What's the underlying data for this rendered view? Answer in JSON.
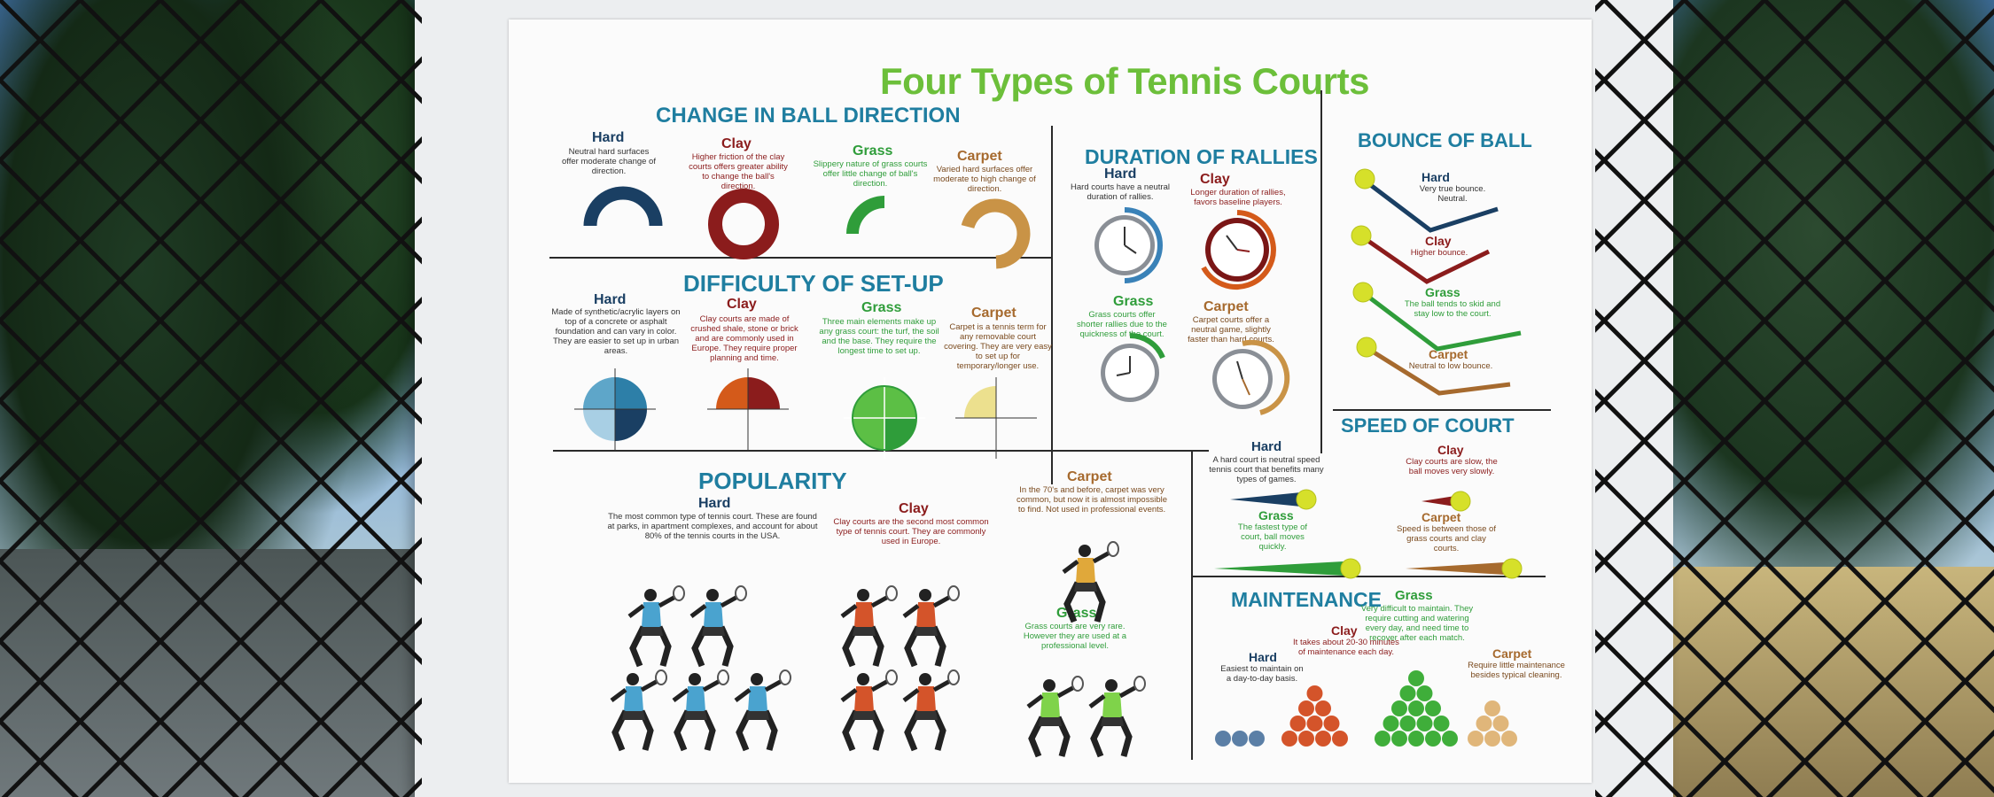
{
  "poster": {
    "title": "Four Types of Tennis Courts",
    "ball_direction": {
      "title": "CHANGE IN BALL DIRECTION",
      "hard": {
        "label": "Hard",
        "text": "Neutral hard surfaces offer moderate change of direction."
      },
      "clay": {
        "label": "Clay",
        "text": "Higher friction of the clay courts offers greater ability to change the ball's direction."
      },
      "grass": {
        "label": "Grass",
        "text": "Slippery nature of grass courts offer little change of ball's direction."
      },
      "carpet": {
        "label": "Carpet",
        "text": "Varied hard surfaces offer moderate to high change of direction."
      }
    },
    "setup": {
      "title": "DIFFICULTY OF SET-UP",
      "hard": {
        "label": "Hard",
        "text": "Made of synthetic/acrylic layers on top of a concrete or asphalt foundation and can vary in color. They are easier to set up in urban areas."
      },
      "clay": {
        "label": "Clay",
        "text": "Clay courts are made of crushed shale, stone or brick and are commonly used in Europe. They require proper planning and time."
      },
      "grass": {
        "label": "Grass",
        "text": "Three main elements make up any grass court: the turf, the soil and the base. They require the longest time to set up."
      },
      "carpet": {
        "label": "Carpet",
        "text": "Carpet is a tennis term for any removable court covering. They are very easy to set up for temporary/longer use."
      }
    },
    "popularity": {
      "title": "POPULARITY",
      "hard": {
        "label": "Hard",
        "text": "The most common type of tennis court. These are found at parks, in apartment complexes, and account for about 80% of the tennis courts in the USA."
      },
      "clay": {
        "label": "Clay",
        "text": "Clay courts are the second most common type of tennis court. They are commonly used in Europe."
      },
      "carpet": {
        "label": "Carpet",
        "text": "In the 70's and before, carpet was very common, but now it is almost impossible to find. Not used in professional events."
      },
      "grass": {
        "label": "Grass",
        "text": "Grass courts are very rare. However they are used at a professional level."
      }
    },
    "rallies": {
      "title": "DURATION OF RALLIES",
      "hard": {
        "label": "Hard",
        "text": "Hard courts have a neutral duration of rallies."
      },
      "clay": {
        "label": "Clay",
        "text": "Longer duration of rallies, favors baseline players."
      },
      "grass": {
        "label": "Grass",
        "text": "Grass courts offer shorter rallies due to the quickness of the court."
      },
      "carpet": {
        "label": "Carpet",
        "text": "Carpet courts offer a neutral game, slightly faster than hard courts."
      }
    },
    "bounce": {
      "title": "BOUNCE OF BALL",
      "hard": {
        "label": "Hard",
        "text": "Very true bounce. Neutral."
      },
      "clay": {
        "label": "Clay",
        "text": "Higher bounce."
      },
      "grass": {
        "label": "Grass",
        "text": "The ball tends to skid and stay low to the court."
      },
      "carpet": {
        "label": "Carpet",
        "text": "Neutral to low bounce."
      }
    },
    "speed": {
      "title": "SPEED OF COURT",
      "hard": {
        "label": "Hard",
        "text": "A hard court is neutral speed tennis court that benefits many types of games."
      },
      "clay": {
        "label": "Clay",
        "text": "Clay courts are slow, the ball moves very slowly."
      },
      "grass": {
        "label": "Grass",
        "text": "The fastest type of court, ball moves quickly."
      },
      "carpet": {
        "label": "Carpet",
        "text": "Speed is between those of grass courts and clay courts."
      }
    },
    "maintenance": {
      "title": "MAINTENANCE",
      "hard": {
        "label": "Hard",
        "text": "Easiest to maintain on a day-to-day basis."
      },
      "clay": {
        "label": "Clay",
        "text": "It takes about 20-30 minutes of maintenance each day."
      },
      "grass": {
        "label": "Grass",
        "text": "Very difficult to maintain. They require cutting and watering every day, and need time to recover after each match."
      },
      "carpet": {
        "label": "Carpet",
        "text": "Require little maintenance besides typical cleaning."
      }
    }
  },
  "colors": {
    "hard": "#1a3f63",
    "clay": "#8b1c1c",
    "grass": "#2f9d3a",
    "carpet": "#a66a2e",
    "title_green": "#6cbf3a",
    "section_teal": "#1f7ea0",
    "ball_yellow": "#d6e02a"
  },
  "icons": {
    "background": "chain-link-fence",
    "ball_direction": "semicircle-arc-gauge",
    "setup": "quartered-circle",
    "popularity": "tennis-player-silhouette",
    "rallies": "clock-icon",
    "bounce": "bouncing-ball-trail",
    "speed": "ball-speed-trail",
    "maintenance": "ball-pyramid"
  },
  "chart_data": [
    {
      "type": "table",
      "title": "POPULARITY",
      "categories": [
        "Hard",
        "Clay",
        "Carpet",
        "Grass"
      ],
      "values": [
        5,
        4,
        1,
        2
      ]
    },
    {
      "type": "table",
      "title": "MAINTENANCE",
      "categories": [
        "Hard",
        "Clay",
        "Grass",
        "Carpet"
      ],
      "values": [
        4,
        10,
        15,
        6
      ]
    }
  ]
}
